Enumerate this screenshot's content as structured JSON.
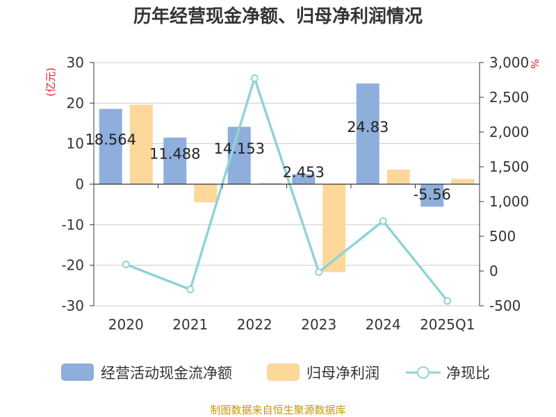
{
  "title": "历年经营现金净额、归母净利润情况",
  "source": "制图数据来自恒生聚源数据库",
  "chart_data": {
    "type": "bar",
    "title": "历年经营现金净额、归母净利润情况",
    "categories": [
      "2020",
      "2021",
      "2022",
      "2023",
      "2024",
      "2025Q1"
    ],
    "left_axis": {
      "unit": "(亿元)",
      "ylim": [
        -30,
        30
      ],
      "ticks": [
        "30",
        "20",
        "10",
        "0",
        "-10",
        "-20",
        "-30"
      ]
    },
    "right_axis": {
      "unit": "%",
      "ylim": [
        -500,
        3000
      ],
      "ticks": [
        "3,000",
        "2,500",
        "2,000",
        "1,500",
        "1,000",
        "500",
        "0",
        "-500"
      ]
    },
    "series": [
      {
        "name": "经营活动现金流净额",
        "type": "bar",
        "axis": "left",
        "color": "#8eaedc",
        "values": [
          18.564,
          11.488,
          14.153,
          2.453,
          24.83,
          -5.56
        ],
        "labels": [
          "18.564",
          "11.488",
          "14.153",
          "2.453",
          "24.83",
          "-5.56"
        ]
      },
      {
        "name": "归母净利润",
        "type": "bar",
        "axis": "left",
        "color": "#fdd89a",
        "values": [
          19.6,
          -4.5,
          0.3,
          -21.7,
          3.6,
          1.3
        ]
      },
      {
        "name": "净现比",
        "type": "line",
        "axis": "right",
        "color": "#8fd3d8",
        "values": [
          95,
          -265,
          2775,
          -15,
          720,
          -430
        ]
      }
    ],
    "grid": true,
    "legend": "bottom"
  }
}
